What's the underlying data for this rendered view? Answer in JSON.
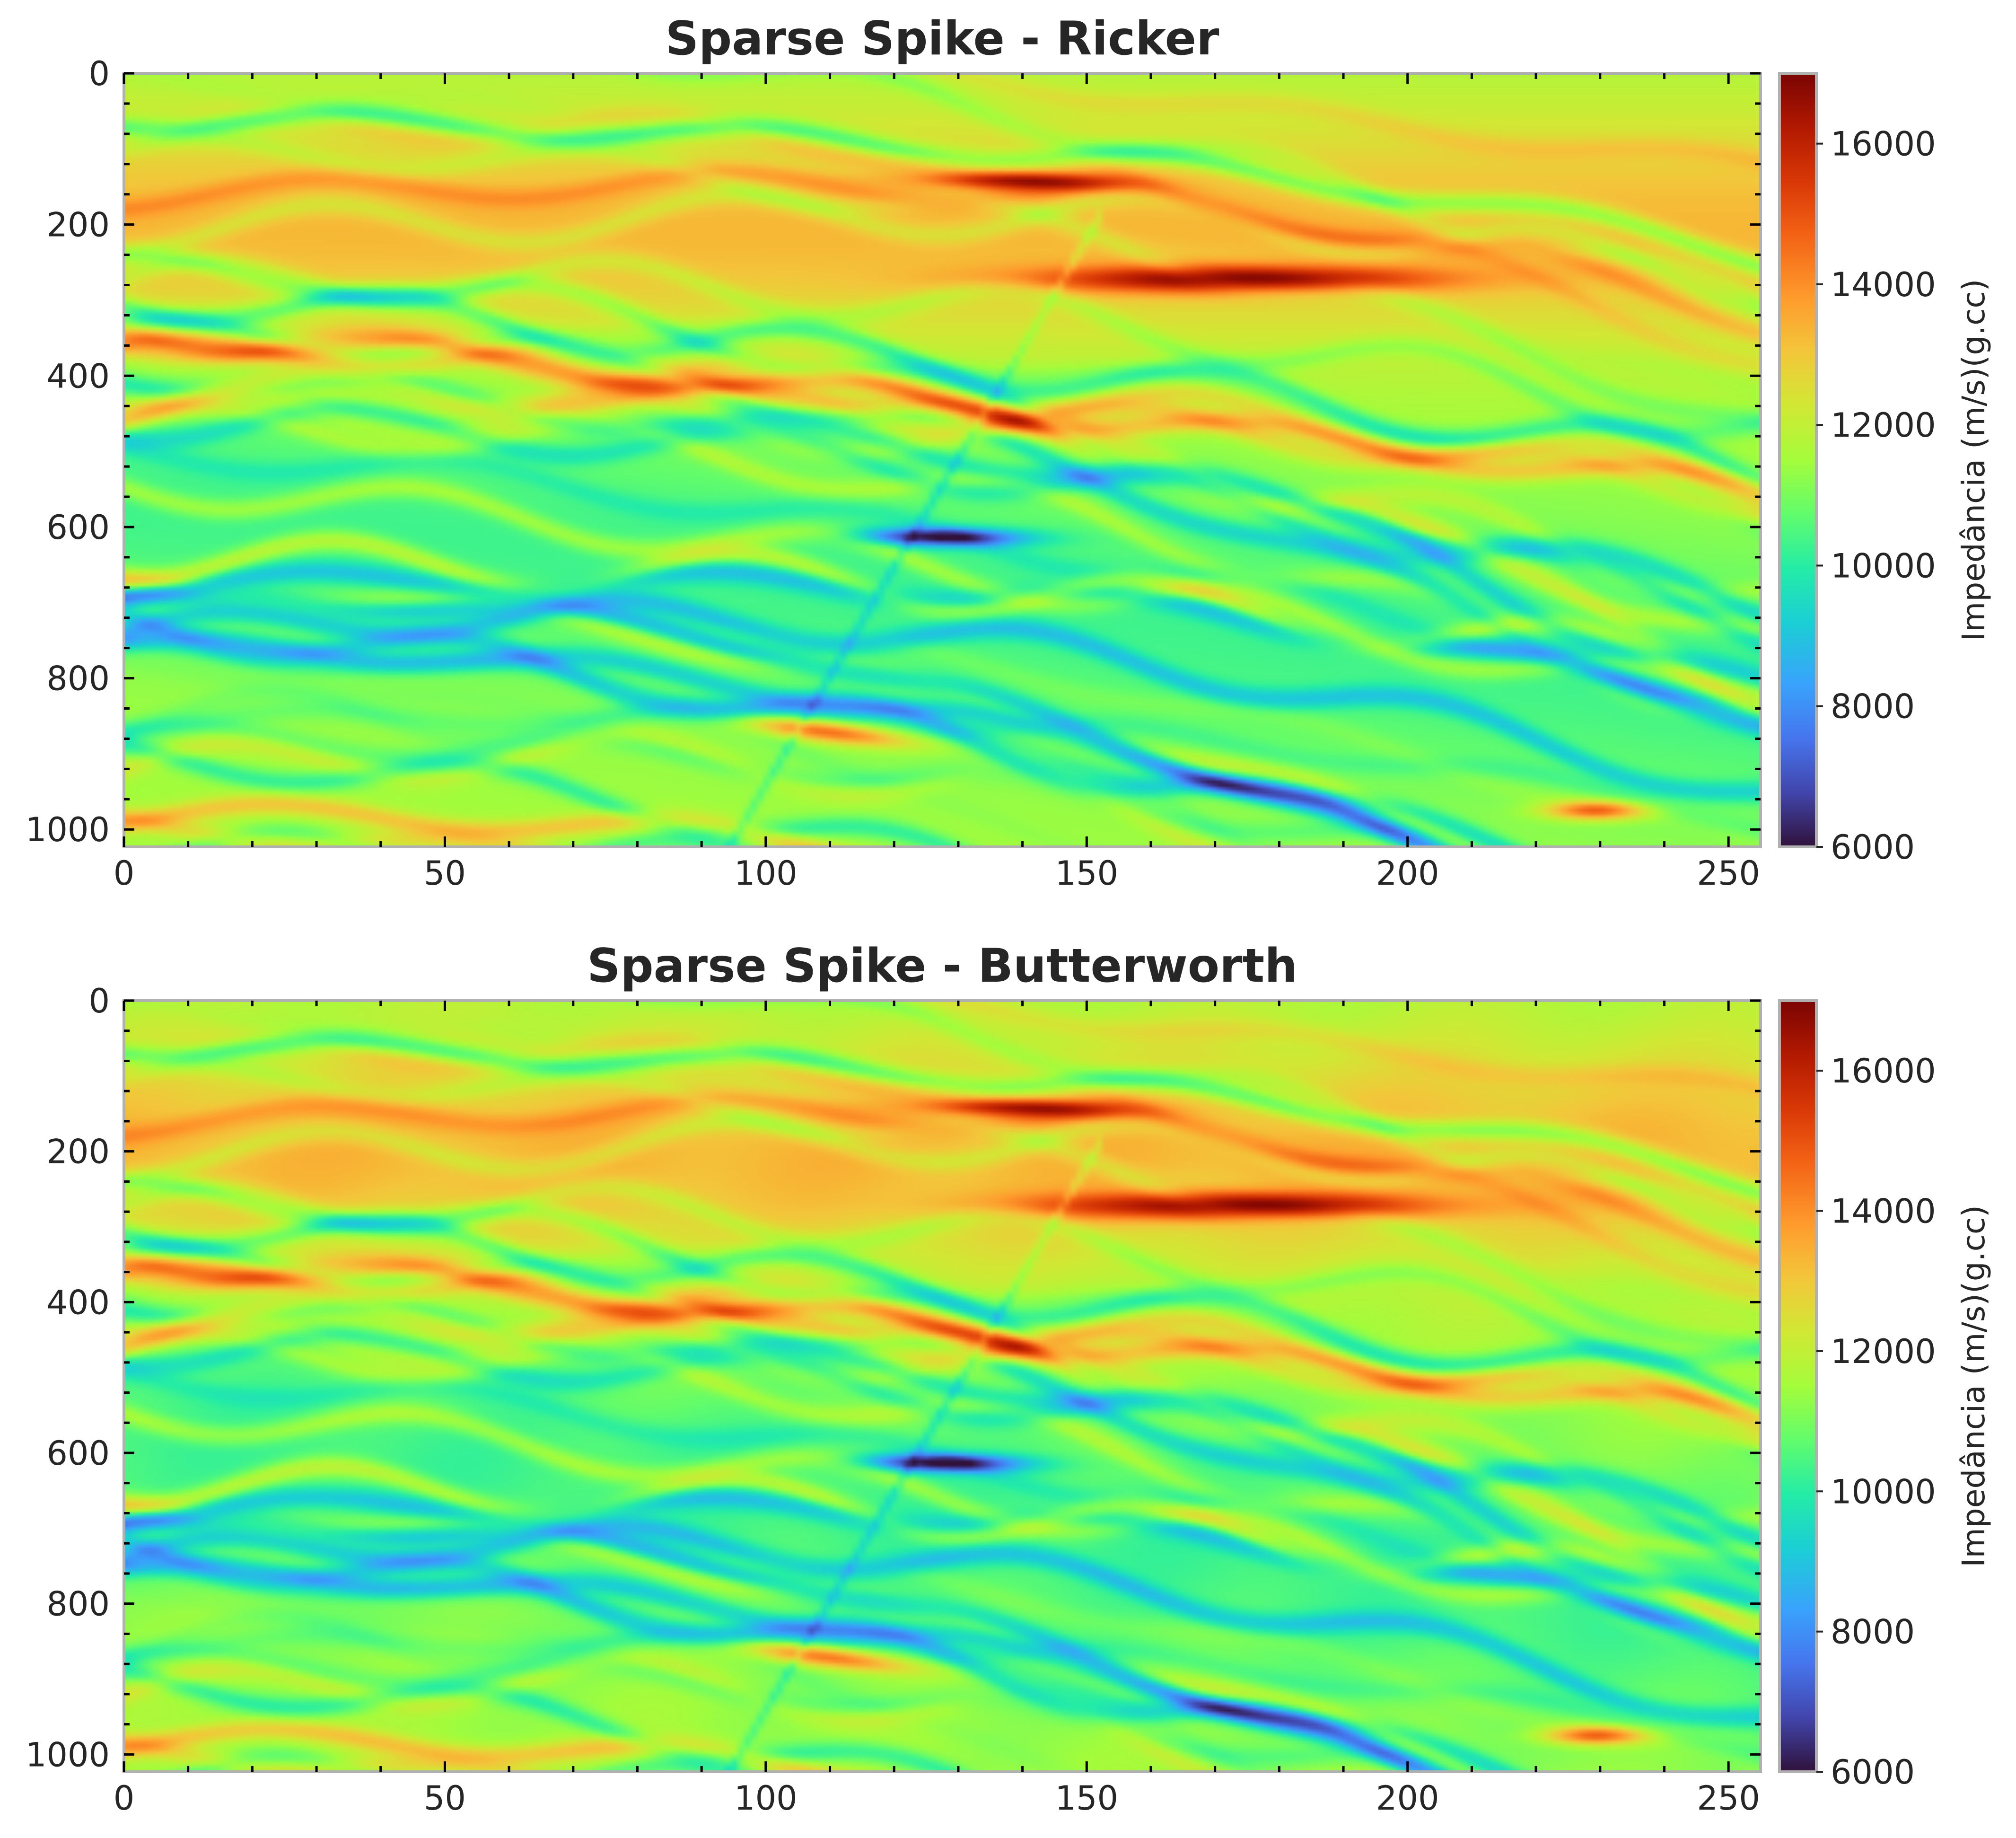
{
  "chart_data": [
    {
      "type": "heatmap",
      "title": "Sparse Spike - Ricker",
      "xlabel": "",
      "ylabel": "",
      "xlim": [
        0,
        255
      ],
      "ylim": [
        1023,
        0
      ],
      "xticks": [
        0,
        50,
        100,
        150,
        200,
        250
      ],
      "yticks": [
        0,
        200,
        400,
        600,
        800,
        1000
      ],
      "colorbar": {
        "label": "Impedância (m/s)(g.cc)",
        "range": [
          6000,
          17000
        ],
        "ticks": [
          6000,
          8000,
          10000,
          12000,
          14000,
          16000
        ],
        "colormap": "turbo"
      },
      "grid": false
    },
    {
      "type": "heatmap",
      "title": "Sparse Spike - Butterworth",
      "xlabel": "",
      "ylabel": "",
      "xlim": [
        0,
        255
      ],
      "ylim": [
        1023,
        0
      ],
      "xticks": [
        0,
        50,
        100,
        150,
        200,
        250
      ],
      "yticks": [
        0,
        200,
        400,
        600,
        800,
        1000
      ],
      "colorbar": {
        "label": "Impedância (m/s)(g.cc)",
        "range": [
          6000,
          17000
        ],
        "ticks": [
          6000,
          8000,
          10000,
          12000,
          14000,
          16000
        ],
        "colormap": "turbo"
      },
      "grid": false
    }
  ],
  "colors": {
    "background_mid": "#b7f23a",
    "text": "#262626",
    "axes_frame": "#b0b0b0"
  }
}
